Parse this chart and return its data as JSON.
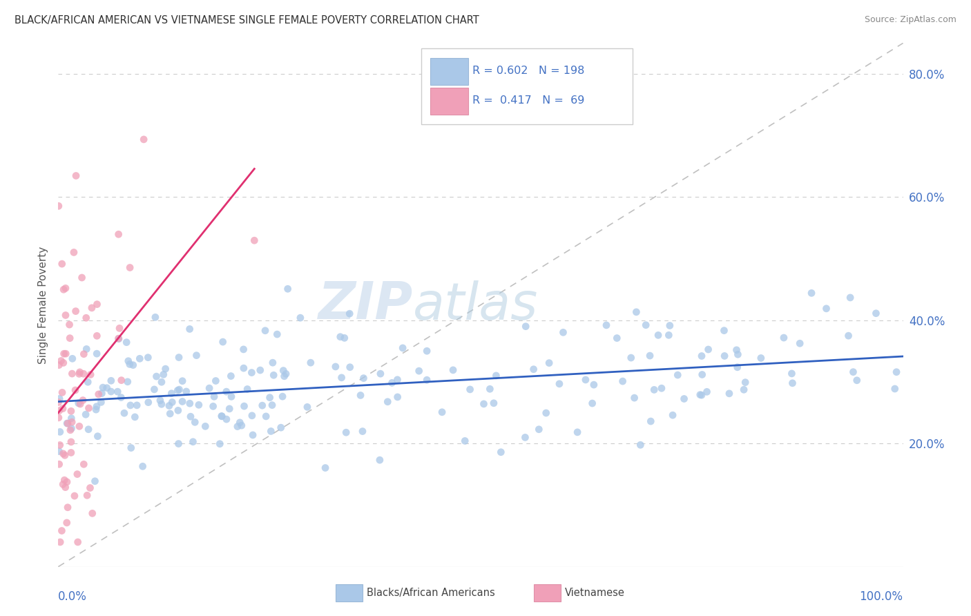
{
  "title": "BLACK/AFRICAN AMERICAN VS VIETNAMESE SINGLE FEMALE POVERTY CORRELATION CHART",
  "source": "Source: ZipAtlas.com",
  "ylabel": "Single Female Poverty",
  "watermark_zip": "ZIP",
  "watermark_atlas": "atlas",
  "legend_blue_r": "R = 0.602",
  "legend_blue_n": "N = 198",
  "legend_pink_r": "R =  0.417",
  "legend_pink_n": "N =  69",
  "blue_scatter_color": "#aac8e8",
  "pink_scatter_color": "#f0a0b8",
  "blue_line_color": "#3060c0",
  "pink_line_color": "#e03070",
  "axis_color": "#4472c4",
  "title_color": "#303030",
  "source_color": "#888888",
  "grid_color": "#cccccc",
  "diag_color": "#c0c0c0",
  "background_color": "#ffffff",
  "xlim": [
    0.0,
    1.0
  ],
  "ylim": [
    0.0,
    0.85
  ],
  "ytick_vals": [
    0.2,
    0.4,
    0.6,
    0.8
  ],
  "blue_seed": 77,
  "pink_seed": 55
}
